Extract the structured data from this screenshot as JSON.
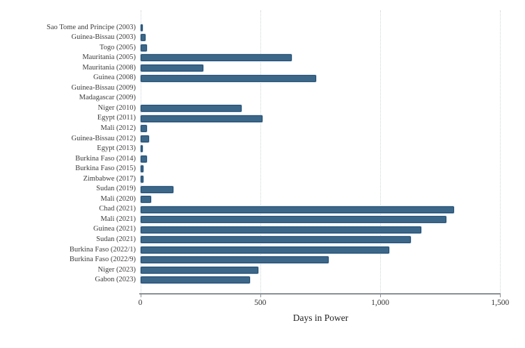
{
  "chart_data": {
    "type": "bar",
    "orientation": "horizontal",
    "title": "",
    "xlabel": "Days in Power",
    "ylabel": "",
    "xlim": [
      0,
      1500
    ],
    "x_ticks": [
      0,
      500,
      1000,
      1500
    ],
    "x_tick_labels": [
      "0",
      "500",
      "1,000",
      "1,500"
    ],
    "grid": "vertical-dotted",
    "legend": "none",
    "bar_fill_color": "#3d6788",
    "bar_border_color": "#1f4a6e",
    "categories": [
      "Sao Tome and Principe (2003)",
      "Guinea-Bissau (2003)",
      "Togo (2005)",
      "Mauritania (2005)",
      "Mauritania (2008)",
      "Guinea (2008)",
      "Guinea-Bissau (2009)",
      "Madagascar (2009)",
      "Niger (2010)",
      "Egypt (2011)",
      "Mali (2012)",
      "Guinea-Bissau (2012)",
      "Egypt (2013)",
      "Burkina Faso (2014)",
      "Burkina Faso (2015)",
      "Zimbabwe (2017)",
      "Sudan (2019)",
      "Mali (2020)",
      "Chad (2021)",
      "Mali (2021)",
      "Guinea (2021)",
      "Sudan (2021)",
      "Burkina Faso (2022/1)",
      "Burkina Faso (2022/9)",
      "Niger (2023)",
      "Gabon (2023)"
    ],
    "values": [
      10,
      20,
      26,
      630,
      260,
      730,
      0,
      0,
      420,
      508,
      25,
      36,
      5,
      27,
      13,
      13,
      135,
      44,
      1305,
      1275,
      1170,
      1125,
      1035,
      785,
      490,
      455
    ]
  }
}
